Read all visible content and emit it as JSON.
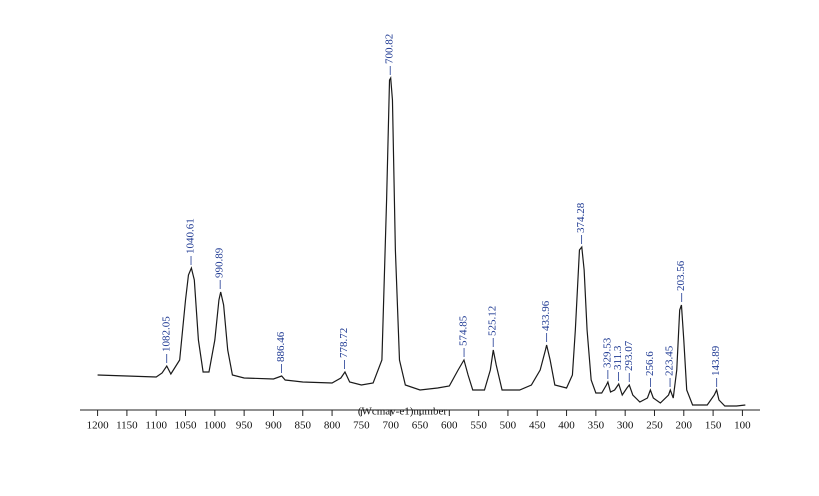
{
  "chart_data": {
    "type": "line",
    "x_label": "(Wcmav-e1)number",
    "xlim": [
      1230,
      70
    ],
    "ylim": [
      0,
      340
    ],
    "xticks": [
      1200,
      1150,
      1100,
      1050,
      1000,
      950,
      900,
      850,
      800,
      750,
      700,
      650,
      600,
      550,
      500,
      450,
      400,
      350,
      300,
      250,
      200,
      150,
      100
    ],
    "color": "#1a1a1a",
    "x": [
      1200,
      1150,
      1100,
      1090,
      1082,
      1075,
      1060,
      1050,
      1045,
      1040,
      1035,
      1028,
      1020,
      1010,
      1000,
      993,
      990,
      985,
      978,
      970,
      950,
      900,
      886,
      880,
      850,
      800,
      785,
      778,
      770,
      750,
      730,
      715,
      707,
      702,
      700,
      697,
      692,
      685,
      675,
      650,
      620,
      600,
      585,
      575,
      568,
      560,
      540,
      530,
      525,
      520,
      510,
      480,
      460,
      445,
      436,
      434,
      428,
      420,
      400,
      390,
      385,
      378,
      374,
      370,
      365,
      358,
      350,
      340,
      332,
      329.5,
      325,
      318,
      311,
      305,
      297,
      293,
      287,
      275,
      262,
      257,
      252,
      240,
      226,
      223,
      218,
      212,
      207,
      204,
      200,
      195,
      185,
      160,
      148,
      144,
      140,
      130,
      110,
      95
    ],
    "values": [
      33,
      32,
      31,
      35,
      42,
      34,
      48,
      108,
      133,
      140,
      128,
      68,
      36,
      36,
      68,
      108,
      116,
      103,
      58,
      33,
      30,
      29,
      32,
      28,
      26,
      25,
      30,
      36,
      26,
      23,
      25,
      48,
      208,
      328,
      330,
      308,
      158,
      48,
      23,
      18,
      20,
      22,
      38,
      48,
      33,
      18,
      18,
      38,
      58,
      43,
      18,
      18,
      23,
      38,
      58,
      63,
      48,
      23,
      20,
      33,
      78,
      158,
      161,
      138,
      78,
      28,
      15,
      15,
      23,
      26,
      16,
      18,
      24,
      13,
      20,
      23,
      13,
      6,
      10,
      18,
      10,
      5,
      13,
      18,
      10,
      38,
      98,
      103,
      68,
      18,
      3,
      3,
      13,
      18,
      8,
      2,
      2,
      3
    ],
    "annotations": [
      {
        "x": 1082.05,
        "y": 42
      },
      {
        "x": 1040.61,
        "y": 140
      },
      {
        "x": 990.89,
        "y": 116
      },
      {
        "x": 886.46,
        "y": 32
      },
      {
        "x": 778.72,
        "y": 36
      },
      {
        "x": 700.82,
        "y": 330
      },
      {
        "x": 574.85,
        "y": 48
      },
      {
        "x": 525.12,
        "y": 58
      },
      {
        "x": 433.96,
        "y": 63
      },
      {
        "x": 374.28,
        "y": 161
      },
      {
        "x": 329.53,
        "y": 26
      },
      {
        "x": 311.3,
        "y": 24
      },
      {
        "x": 293.07,
        "y": 23
      },
      {
        "x": 256.6,
        "y": 18
      },
      {
        "x": 223.45,
        "y": 18
      },
      {
        "x": 203.56,
        "y": 103
      },
      {
        "x": 143.89,
        "y": 18
      }
    ]
  }
}
